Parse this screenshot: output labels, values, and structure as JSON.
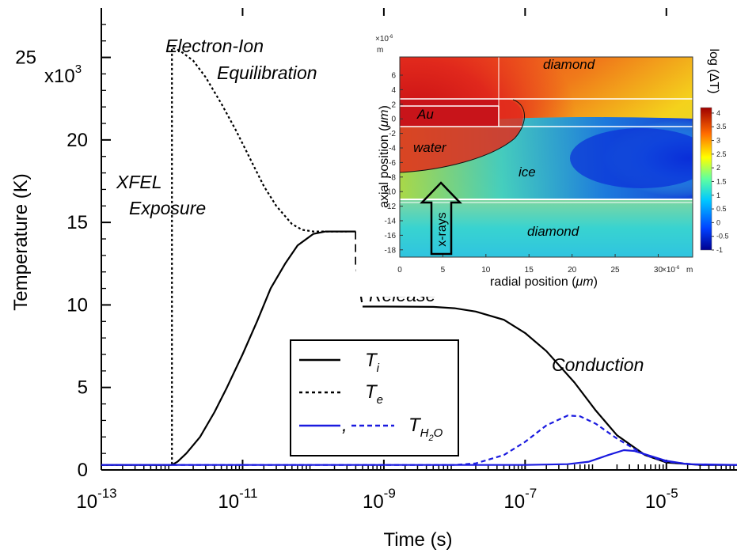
{
  "chart_data": [
    {
      "type": "line",
      "xscale": "log",
      "xlabel": "Time (s)",
      "ylabel": "Temperature (K)",
      "xlim": [
        1e-13,
        0.0001
      ],
      "ylim": [
        0,
        28000
      ],
      "y_multiplier_label": "x10",
      "y_multiplier_exp": "3",
      "x_ticks": [
        {
          "value": 1e-13,
          "base": "10",
          "exp": "-13"
        },
        {
          "value": 1e-11,
          "base": "10",
          "exp": "-11"
        },
        {
          "value": 1e-09,
          "base": "10",
          "exp": "-9"
        },
        {
          "value": 1e-07,
          "base": "10",
          "exp": "-7"
        },
        {
          "value": 1e-05,
          "base": "10",
          "exp": "-5"
        }
      ],
      "y_ticks": [
        {
          "value": 0,
          "label": "0"
        },
        {
          "value": 5000,
          "label": "5"
        },
        {
          "value": 10000,
          "label": "10"
        },
        {
          "value": 15000,
          "label": "15"
        },
        {
          "value": 20000,
          "label": "20"
        },
        {
          "value": 25000,
          "label": "25"
        }
      ],
      "series": [
        {
          "key": "Ti",
          "color": "#000000",
          "dash": "solid",
          "points": [
            [
              1e-13,
              300
            ],
            [
              1e-12,
              300
            ],
            [
              1.2e-12,
              500
            ],
            [
              1.6e-12,
              1000
            ],
            [
              2.5e-12,
              2000
            ],
            [
              4e-12,
              3500
            ],
            [
              6e-12,
              5000
            ],
            [
              1e-11,
              7000
            ],
            [
              1.6e-11,
              9000
            ],
            [
              2.5e-11,
              11000
            ],
            [
              4e-11,
              12500
            ],
            [
              6e-11,
              13600
            ],
            [
              1e-10,
              14300
            ],
            [
              1.5e-10,
              14450
            ],
            [
              3e-10,
              14450
            ],
            [
              4e-10,
              14450
            ]
          ]
        },
        {
          "key": "release",
          "color": "#000000",
          "dash": "dashed",
          "points": [
            [
              4e-10,
              14450
            ],
            [
              4e-10,
              12500
            ],
            [
              5e-10,
              9900
            ]
          ]
        },
        {
          "key": "Ti_after",
          "color": "#000000",
          "dash": "solid",
          "points": [
            [
              5e-10,
              9900
            ],
            [
              1e-09,
              9900
            ],
            [
              5e-09,
              9880
            ],
            [
              1e-08,
              9800
            ],
            [
              2e-08,
              9600
            ],
            [
              5e-08,
              9100
            ],
            [
              1e-07,
              8300
            ],
            [
              2e-07,
              7200
            ],
            [
              5e-07,
              5300
            ],
            [
              1e-06,
              3600
            ],
            [
              2e-06,
              2100
            ],
            [
              5e-06,
              900
            ],
            [
              1e-05,
              450
            ],
            [
              3e-05,
              300
            ],
            [
              0.0001,
              300
            ]
          ]
        },
        {
          "key": "Te",
          "color": "#000000",
          "dash": "dotted",
          "points": [
            [
              1e-13,
              300
            ],
            [
              1e-12,
              300
            ],
            [
              1e-12,
              25600
            ],
            [
              1.3e-12,
              25400
            ],
            [
              2e-12,
              24800
            ],
            [
              3e-12,
              23800
            ],
            [
              5e-12,
              22200
            ],
            [
              8e-12,
              20600
            ],
            [
              1.3e-11,
              18800
            ],
            [
              2e-11,
              17200
            ],
            [
              3e-11,
              16000
            ],
            [
              5e-11,
              14900
            ],
            [
              7e-11,
              14550
            ],
            [
              1e-10,
              14450
            ],
            [
              3e-10,
              14450
            ]
          ]
        },
        {
          "key": "TH2O_dashed",
          "color": "#1a1adf",
          "dash": "dashed",
          "points": [
            [
              1e-13,
              300
            ],
            [
              1e-08,
              300
            ],
            [
              2e-08,
              400
            ],
            [
              5e-08,
              900
            ],
            [
              1e-07,
              1700
            ],
            [
              2e-07,
              2700
            ],
            [
              4e-07,
              3300
            ],
            [
              6e-07,
              3250
            ],
            [
              1e-06,
              2800
            ],
            [
              2e-06,
              1900
            ],
            [
              5e-06,
              900
            ],
            [
              1e-05,
              500
            ],
            [
              3e-05,
              300
            ],
            [
              0.0001,
              300
            ]
          ]
        },
        {
          "key": "TH2O_solid",
          "color": "#1a1adf",
          "dash": "solid",
          "points": [
            [
              1e-13,
              300
            ],
            [
              1e-07,
              300
            ],
            [
              4e-07,
              350
            ],
            [
              8e-07,
              500
            ],
            [
              1.5e-06,
              900
            ],
            [
              2.5e-06,
              1200
            ],
            [
              3.5e-06,
              1150
            ],
            [
              5e-06,
              950
            ],
            [
              1e-05,
              550
            ],
            [
              2e-05,
              350
            ],
            [
              0.0001,
              300
            ]
          ]
        }
      ],
      "legend": {
        "placement": "lower-center",
        "entries": [
          {
            "text": "T",
            "sub": "i",
            "line": "solid",
            "color": "#000000"
          },
          {
            "text": "T",
            "sub": "e",
            "line": "dotted",
            "color": "#000000"
          },
          {
            "text": "T",
            "sub": "H",
            "sub2": "2",
            "tail": "O",
            "comma": ",",
            "line": "solid+dotted",
            "color": "#1a1adf"
          }
        ]
      },
      "annotations": [
        {
          "key": "xfel1",
          "text": "XFEL"
        },
        {
          "key": "xfel2",
          "text": "Exposure"
        },
        {
          "key": "ei1",
          "text": "Electron-Ion"
        },
        {
          "key": "ei2",
          "text": "Equilibration"
        },
        {
          "key": "release",
          "text": "Release"
        },
        {
          "key": "conduction",
          "text": "Conduction"
        }
      ]
    },
    {
      "type": "heatmap",
      "xlabel": "radial position (",
      "xlabel_unit": "μm",
      "ylabel": "axial position (",
      "ylabel_unit": "μm",
      "x_offset_label": "×10",
      "x_offset_exp": "-6",
      "x_offset_unit": "m",
      "y_offset_label": "×10",
      "y_offset_exp": "-6",
      "y_offset_unit": "m",
      "xlim": [
        0,
        34
      ],
      "ylim": [
        -19,
        8.5
      ],
      "x_ticks": [
        "0",
        "5",
        "10",
        "15",
        "20",
        "25",
        "30"
      ],
      "y_ticks": [
        "6",
        "4",
        "2",
        "0",
        "-2",
        "-4",
        "-6",
        "-8",
        "-10",
        "-12",
        "-14",
        "-16",
        "-18"
      ],
      "colorbar": {
        "label": "log (ΔT)",
        "range": [
          -1,
          4.2
        ],
        "ticks": [
          "4",
          "3.5",
          "3",
          "2.5",
          "2",
          "1.5",
          "1",
          "0.5",
          "0",
          "-0.5",
          "-1"
        ]
      },
      "labels": {
        "diamond_top": "diamond",
        "au": "Au",
        "water": "water",
        "ice": "ice",
        "diamond_bottom": "diamond",
        "xrays": "x-rays"
      }
    }
  ]
}
